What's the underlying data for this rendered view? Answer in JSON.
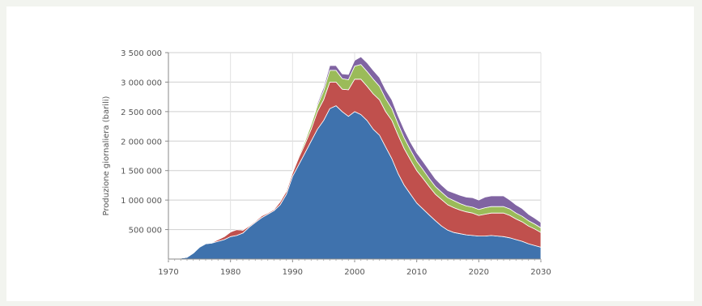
{
  "chart_data": {
    "type": "area",
    "stacked": true,
    "title": "",
    "xlabel": "",
    "ylabel": "Produzione giornaliera (barili)",
    "xlim": [
      1970,
      2030
    ],
    "ylim": [
      0,
      3500000
    ],
    "xticks": [
      1970,
      1980,
      1990,
      2000,
      2010,
      2020,
      2030
    ],
    "yticks": [
      500000,
      1000000,
      1500000,
      2000000,
      2500000,
      3000000,
      3500000
    ],
    "ytick_labels": [
      "500 000",
      "1 000 000",
      "1 500 000",
      "2 000 000",
      "2 500 000",
      "3 000 000",
      "3 500 000"
    ],
    "grid": true,
    "legend": "none",
    "x": [
      1970,
      1971,
      1972,
      1973,
      1974,
      1975,
      1976,
      1977,
      1978,
      1979,
      1980,
      1981,
      1982,
      1983,
      1984,
      1985,
      1986,
      1987,
      1988,
      1989,
      1990,
      1991,
      1992,
      1993,
      1994,
      1995,
      1996,
      1997,
      1998,
      1999,
      2000,
      2001,
      2002,
      2003,
      2004,
      2005,
      2006,
      2007,
      2008,
      2009,
      2010,
      2011,
      2012,
      2013,
      2014,
      2015,
      2016,
      2017,
      2018,
      2019,
      2020,
      2021,
      2022,
      2023,
      2024,
      2025,
      2026,
      2027,
      2028,
      2029,
      2030
    ],
    "series": [
      {
        "color": "#3f72ad",
        "values": [
          0,
          5000,
          15000,
          30000,
          100000,
          200000,
          260000,
          270000,
          300000,
          330000,
          380000,
          400000,
          440000,
          540000,
          620000,
          700000,
          760000,
          820000,
          920000,
          1100000,
          1400000,
          1600000,
          1800000,
          2000000,
          2200000,
          2350000,
          2550000,
          2600000,
          2500000,
          2420000,
          2500000,
          2450000,
          2350000,
          2200000,
          2100000,
          1900000,
          1700000,
          1450000,
          1250000,
          1100000,
          950000,
          850000,
          750000,
          650000,
          560000,
          490000,
          450000,
          430000,
          410000,
          400000,
          390000,
          390000,
          400000,
          390000,
          380000,
          360000,
          330000,
          300000,
          260000,
          230000,
          200000
        ]
      },
      {
        "color": "#c0504d",
        "values": [
          0,
          0,
          0,
          0,
          0,
          0,
          0,
          10000,
          30000,
          50000,
          80000,
          100000,
          50000,
          20000,
          20000,
          30000,
          20000,
          20000,
          50000,
          50000,
          60000,
          120000,
          150000,
          200000,
          300000,
          350000,
          450000,
          400000,
          380000,
          450000,
          550000,
          600000,
          580000,
          600000,
          600000,
          600000,
          650000,
          650000,
          620000,
          580000,
          550000,
          520000,
          480000,
          450000,
          450000,
          430000,
          420000,
          400000,
          390000,
          380000,
          350000,
          370000,
          380000,
          390000,
          400000,
          380000,
          350000,
          330000,
          300000,
          280000,
          250000
        ]
      },
      {
        "color": "#9bbb59",
        "values": [
          0,
          0,
          0,
          0,
          0,
          0,
          0,
          0,
          0,
          0,
          0,
          0,
          0,
          0,
          0,
          0,
          0,
          0,
          0,
          0,
          20000,
          30000,
          50000,
          80000,
          100000,
          150000,
          200000,
          200000,
          180000,
          170000,
          220000,
          250000,
          250000,
          250000,
          230000,
          220000,
          200000,
          190000,
          180000,
          170000,
          160000,
          150000,
          140000,
          130000,
          125000,
          120000,
          120000,
          110000,
          100000,
          100000,
          100000,
          110000,
          110000,
          110000,
          110000,
          110000,
          100000,
          95000,
          90000,
          85000,
          80000
        ]
      },
      {
        "color": "#8064a2",
        "values": [
          0,
          0,
          0,
          0,
          0,
          0,
          0,
          0,
          0,
          0,
          0,
          0,
          0,
          0,
          0,
          0,
          0,
          0,
          0,
          0,
          10000,
          10000,
          20000,
          30000,
          40000,
          60000,
          80000,
          80000,
          80000,
          90000,
          100000,
          130000,
          150000,
          150000,
          150000,
          150000,
          150000,
          140000,
          140000,
          130000,
          140000,
          140000,
          140000,
          130000,
          120000,
          120000,
          130000,
          140000,
          150000,
          160000,
          160000,
          180000,
          180000,
          180000,
          180000,
          150000,
          140000,
          130000,
          110000,
          100000,
          90000
        ]
      }
    ]
  }
}
